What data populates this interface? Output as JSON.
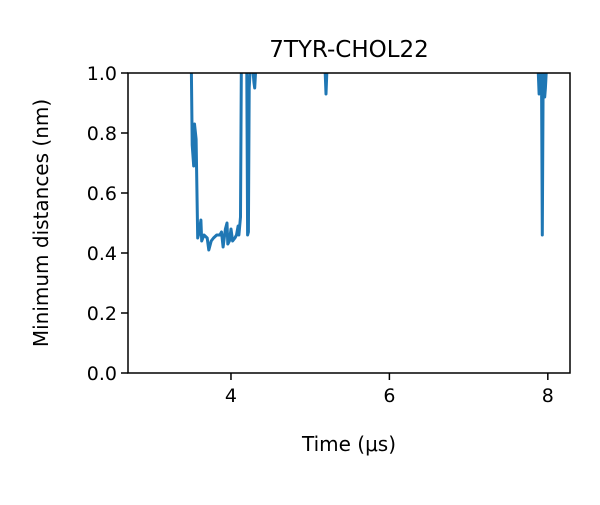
{
  "chart_data": {
    "type": "line",
    "title": "7TYR-CHOL22",
    "xlabel": "Time (μs)",
    "ylabel": "Minimum distances (nm)",
    "xlim": [
      2.7,
      8.28
    ],
    "ylim": [
      0.0,
      1.0
    ],
    "x_ticks": [
      4,
      6,
      8
    ],
    "x_tick_labels": [
      "4",
      "6",
      "8"
    ],
    "y_ticks": [
      0.0,
      0.2,
      0.4,
      0.6,
      0.8,
      1.0
    ],
    "y_tick_labels": [
      "0.0",
      "0.2",
      "0.4",
      "0.6",
      "0.8",
      "1.0"
    ],
    "grid": false,
    "legend": "none",
    "series": [
      {
        "color": "#1f77b4",
        "segments": [
          [
            [
              3.5,
              1.05
            ],
            [
              3.5,
              1.0
            ],
            [
              3.51,
              0.76
            ],
            [
              3.53,
              0.69
            ],
            [
              3.54,
              0.83
            ],
            [
              3.56,
              0.78
            ],
            [
              3.58,
              0.45
            ],
            [
              3.6,
              0.47
            ],
            [
              3.62,
              0.51
            ],
            [
              3.63,
              0.44
            ],
            [
              3.66,
              0.46
            ],
            [
              3.7,
              0.45
            ],
            [
              3.72,
              0.41
            ],
            [
              3.75,
              0.44
            ],
            [
              3.78,
              0.45
            ],
            [
              3.82,
              0.46
            ],
            [
              3.86,
              0.46
            ],
            [
              3.88,
              0.47
            ],
            [
              3.9,
              0.42
            ],
            [
              3.93,
              0.48
            ],
            [
              3.95,
              0.5
            ],
            [
              3.96,
              0.43
            ],
            [
              3.98,
              0.44
            ],
            [
              4.0,
              0.48
            ],
            [
              4.02,
              0.44
            ],
            [
              4.05,
              0.45
            ],
            [
              4.07,
              0.46
            ],
            [
              4.09,
              0.49
            ],
            [
              4.1,
              0.46
            ],
            [
              4.12,
              0.52
            ],
            [
              4.13,
              1.0
            ],
            [
              4.14,
              1.05
            ]
          ],
          [
            [
              4.2,
              1.05
            ],
            [
              4.2,
              1.0
            ],
            [
              4.21,
              0.46
            ],
            [
              4.22,
              0.47
            ],
            [
              4.23,
              0.95
            ],
            [
              4.24,
              1.0
            ],
            [
              4.25,
              1.05
            ]
          ],
          [
            [
              4.28,
              1.05
            ],
            [
              4.28,
              1.0
            ],
            [
              4.29,
              0.97
            ],
            [
              4.3,
              0.95
            ],
            [
              4.31,
              1.0
            ],
            [
              4.32,
              1.05
            ]
          ],
          [
            [
              5.19,
              1.05
            ],
            [
              5.19,
              1.0
            ],
            [
              5.2,
              0.93
            ],
            [
              5.21,
              1.0
            ],
            [
              5.21,
              1.05
            ]
          ],
          [
            [
              7.88,
              1.05
            ],
            [
              7.88,
              1.0
            ],
            [
              7.89,
              0.93
            ],
            [
              7.9,
              1.0
            ],
            [
              7.91,
              1.05
            ]
          ],
          [
            [
              7.92,
              1.05
            ],
            [
              7.92,
              1.0
            ],
            [
              7.93,
              0.46
            ],
            [
              7.94,
              0.95
            ],
            [
              7.95,
              1.0
            ],
            [
              7.96,
              0.92
            ],
            [
              7.97,
              0.95
            ],
            [
              7.98,
              1.0
            ],
            [
              7.99,
              1.05
            ]
          ]
        ]
      }
    ]
  }
}
